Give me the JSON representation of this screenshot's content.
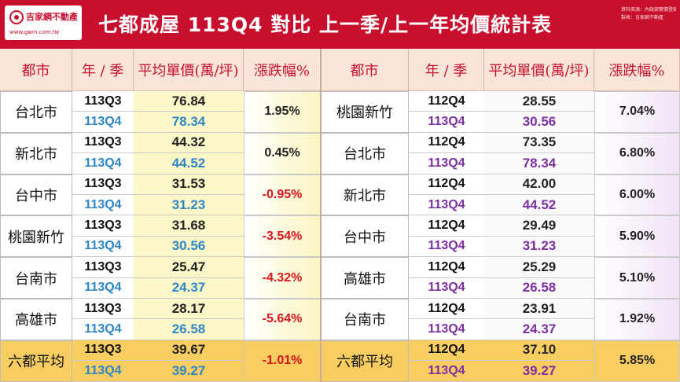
{
  "header": {
    "logo_name": "吉家網不動產",
    "logo_url": "www.gwin.com.tw",
    "title": "七都成屋 113Q4 對比 上一季/上一年均價統計表",
    "notes": [
      "資料來源：內政部實價登錄，吉家網",
      "製表：吉家網不動產"
    ]
  },
  "watermark": {
    "text": "吉家網不動產",
    "url": "http://www.gwin.com.tw"
  },
  "columns": {
    "left": [
      "都市",
      "年 / 季",
      "平均單價(萬/坪)",
      "漲跌幅%"
    ],
    "right": [
      "都市",
      "年 / 季",
      "平均單價(萬/坪)",
      "漲跌幅%"
    ]
  },
  "left_rows": [
    {
      "city": "台北市",
      "q1": "113Q3",
      "v1": "76.84",
      "q2": "113Q4",
      "v2": "78.34",
      "pct": "1.95%"
    },
    {
      "city": "新北市",
      "q1": "113Q3",
      "v1": "44.32",
      "q2": "113Q4",
      "v2": "44.52",
      "pct": "0.45%"
    },
    {
      "city": "台中市",
      "q1": "113Q3",
      "v1": "31.53",
      "q2": "113Q4",
      "v2": "31.23",
      "pct": "-0.95%"
    },
    {
      "city": "桃園新竹",
      "q1": "113Q3",
      "v1": "31.68",
      "q2": "113Q4",
      "v2": "30.56",
      "pct": "-3.54%"
    },
    {
      "city": "台南市",
      "q1": "113Q3",
      "v1": "25.47",
      "q2": "113Q4",
      "v2": "24.37",
      "pct": "-4.32%"
    },
    {
      "city": "高雄市",
      "q1": "113Q3",
      "v1": "28.17",
      "q2": "113Q4",
      "v2": "26.58",
      "pct": "-5.64%"
    },
    {
      "city": "六都平均",
      "q1": "113Q3",
      "v1": "39.67",
      "q2": "113Q4",
      "v2": "39.27",
      "pct": "-1.01%"
    }
  ],
  "right_rows": [
    {
      "city": "桃園新竹",
      "q1": "112Q4",
      "v1": "28.55",
      "q2": "113Q4",
      "v2": "30.56",
      "pct": "7.04%"
    },
    {
      "city": "台北市",
      "q1": "112Q4",
      "v1": "73.35",
      "q2": "113Q4",
      "v2": "78.34",
      "pct": "6.80%"
    },
    {
      "city": "新北市",
      "q1": "112Q4",
      "v1": "42.00",
      "q2": "113Q4",
      "v2": "44.52",
      "pct": "6.00%"
    },
    {
      "city": "台中市",
      "q1": "112Q4",
      "v1": "29.49",
      "q2": "113Q4",
      "v2": "31.23",
      "pct": "5.90%"
    },
    {
      "city": "高雄市",
      "q1": "112Q4",
      "v1": "25.29",
      "q2": "113Q4",
      "v2": "26.58",
      "pct": "5.10%"
    },
    {
      "city": "台南市",
      "q1": "112Q4",
      "v1": "23.91",
      "q2": "113Q4",
      "v2": "24.37",
      "pct": "1.92%"
    },
    {
      "city": "六都平均",
      "q1": "112Q4",
      "v1": "37.10",
      "q2": "113Q4",
      "v2": "39.27",
      "pct": "5.85%"
    }
  ],
  "colors": {
    "brand_red": "#c8102e",
    "header_bg": "#f9e4d8",
    "previous_quarter": "#111111",
    "current_quarter_left": "#2f86c4",
    "current_quarter_right": "#7b2fa0",
    "negative": "#d8151d",
    "average_row": "#f8cd62"
  }
}
